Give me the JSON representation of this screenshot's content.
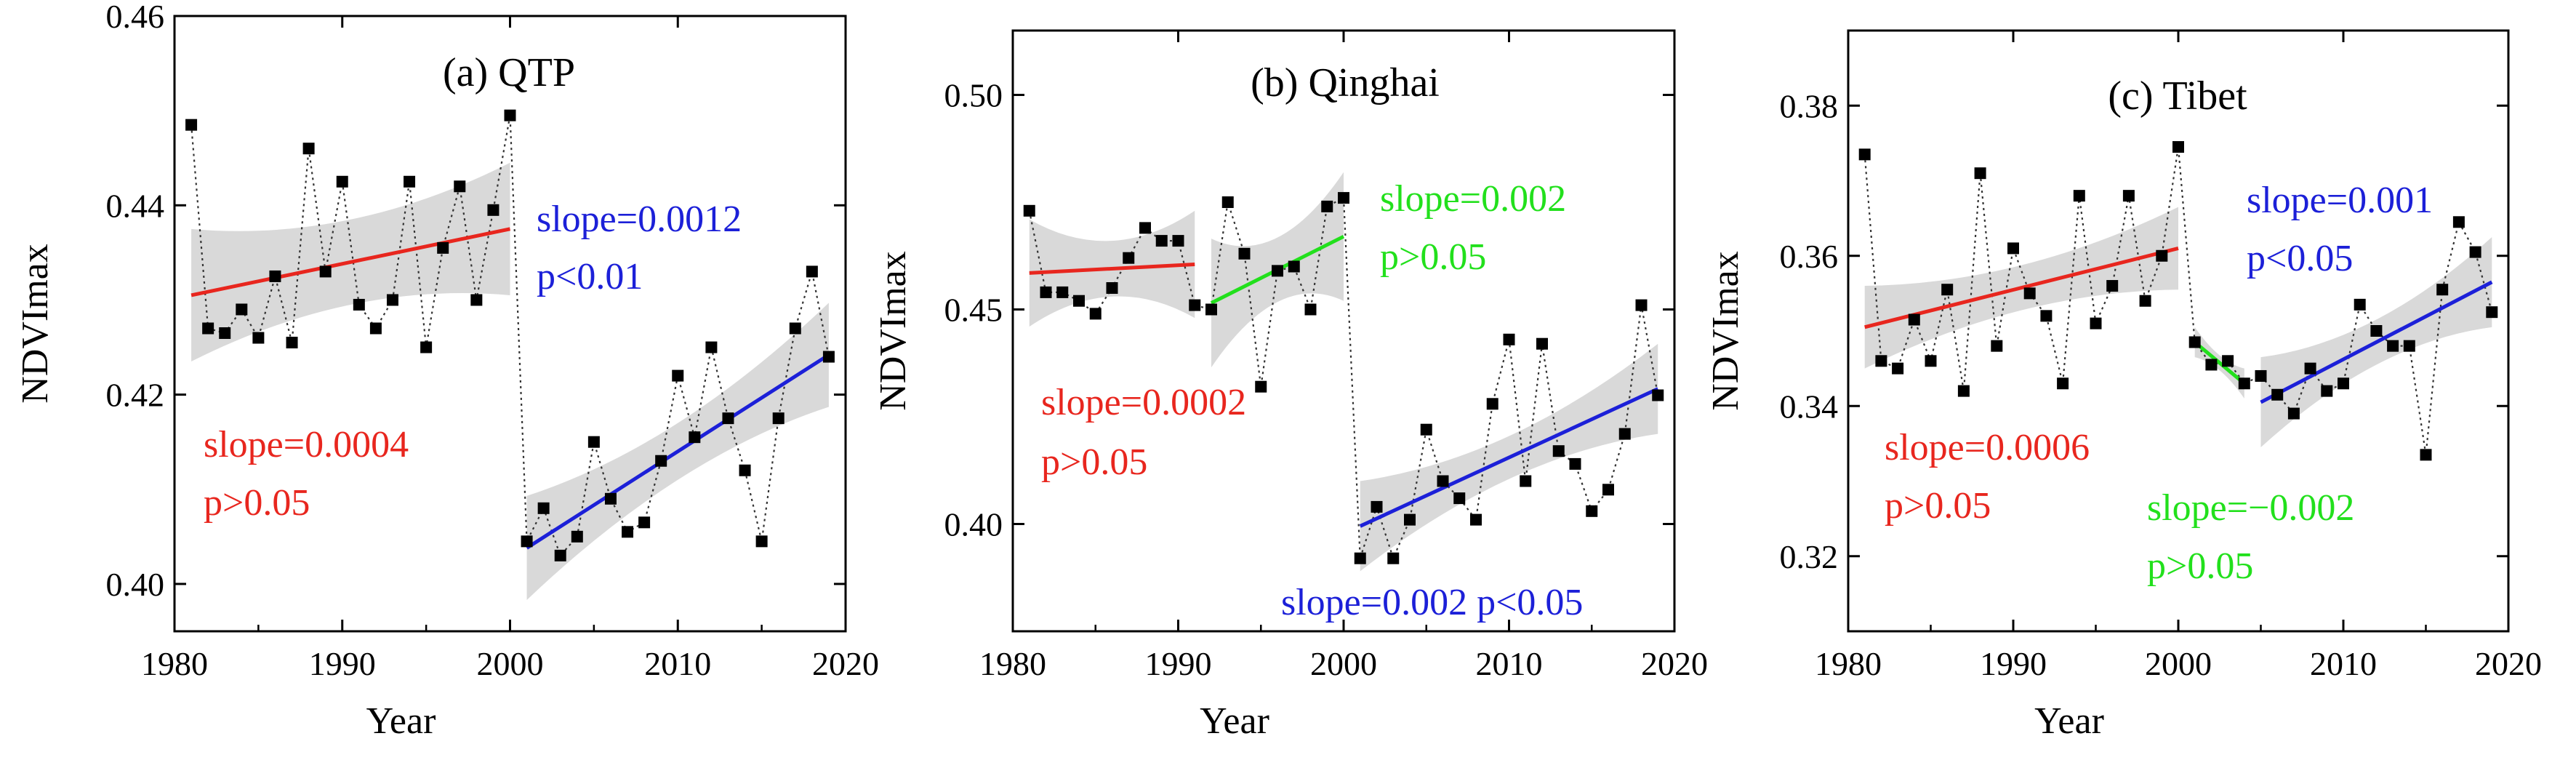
{
  "colors": {
    "red": "#e8261e",
    "blue": "#1c20d8",
    "green": "#22e01c",
    "band": "#d9d9d9",
    "point": "#000000"
  },
  "chart_data": [
    {
      "type": "scatter",
      "title": "(a) QTP",
      "xlabel": "Year",
      "ylabel": "NDVImax",
      "xlim": [
        1980,
        2020
      ],
      "ylim": [
        0.395,
        0.46
      ],
      "x_ticks": [
        1980,
        1990,
        2000,
        2010,
        2020
      ],
      "y_ticks": [
        0.4,
        0.42,
        0.44,
        0.46
      ],
      "y_tick_labels": [
        "0.40",
        "0.42",
        "0.44",
        "0.46"
      ],
      "years": [
        1981,
        1982,
        1983,
        1984,
        1985,
        1986,
        1987,
        1988,
        1989,
        1990,
        1991,
        1992,
        1993,
        1994,
        1995,
        1996,
        1997,
        1998,
        1999,
        2000,
        2001,
        2002,
        2003,
        2004,
        2005,
        2006,
        2007,
        2008,
        2009,
        2010,
        2011,
        2012,
        2013,
        2014,
        2015,
        2016,
        2017,
        2018,
        2019
      ],
      "values": [
        0.4485,
        0.427,
        0.4265,
        0.429,
        0.426,
        0.4325,
        0.4255,
        0.446,
        0.433,
        0.4425,
        0.4295,
        0.427,
        0.43,
        0.4425,
        0.425,
        0.4355,
        0.442,
        0.43,
        0.4395,
        0.4495,
        0.4045,
        0.408,
        0.403,
        0.405,
        0.415,
        0.409,
        0.4055,
        0.4065,
        0.413,
        0.422,
        0.4155,
        0.425,
        0.4175,
        0.412,
        0.4045,
        0.4175,
        0.427,
        0.433,
        0.424
      ],
      "trends": [
        {
          "name": "1981-2000",
          "x": [
            1981,
            2000
          ],
          "y": [
            0.4305,
            0.4375
          ],
          "band_half_width": [
            0.007,
            0.0045,
            0.007
          ],
          "color": "red",
          "slope_text": "slope=0.0004",
          "p_text": "p>0.05"
        },
        {
          "name": "2001-2019",
          "x": [
            2001,
            2019
          ],
          "y": [
            0.4038,
            0.4242
          ],
          "band_half_width": [
            0.0055,
            0.003,
            0.0055
          ],
          "color": "blue",
          "slope_text": "slope=0.0012",
          "p_text": "p<0.01"
        }
      ],
      "annotations": [
        {
          "text": "slope=0.0012",
          "color": "blue",
          "position": "upper-right"
        },
        {
          "text": "p<0.01",
          "color": "blue",
          "position": "upper-right"
        },
        {
          "text": "slope=0.0004",
          "color": "red",
          "position": "lower-left"
        },
        {
          "text": "p>0.05",
          "color": "red",
          "position": "lower-left"
        }
      ]
    },
    {
      "type": "scatter",
      "title": "(b) Qinghai",
      "xlabel": "Year",
      "ylabel": "NDVImax",
      "xlim": [
        1980,
        2020
      ],
      "ylim": [
        0.375,
        0.515
      ],
      "x_ticks": [
        1980,
        1990,
        2000,
        2010,
        2020
      ],
      "y_ticks": [
        0.4,
        0.45,
        0.5
      ],
      "y_tick_labels": [
        "0.40",
        "0.45",
        "0.50"
      ],
      "years": [
        1981,
        1982,
        1983,
        1984,
        1985,
        1986,
        1987,
        1988,
        1989,
        1990,
        1991,
        1992,
        1993,
        1994,
        1995,
        1996,
        1997,
        1998,
        1999,
        2000,
        2001,
        2002,
        2003,
        2004,
        2005,
        2006,
        2007,
        2008,
        2009,
        2010,
        2011,
        2012,
        2013,
        2014,
        2015,
        2016,
        2017,
        2018,
        2019
      ],
      "values": [
        0.473,
        0.454,
        0.454,
        0.452,
        0.449,
        0.455,
        0.462,
        0.469,
        0.466,
        0.466,
        0.451,
        0.45,
        0.475,
        0.463,
        0.432,
        0.459,
        0.46,
        0.45,
        0.474,
        0.476,
        0.392,
        0.404,
        0.392,
        0.401,
        0.422,
        0.41,
        0.406,
        0.401,
        0.428,
        0.443,
        0.41,
        0.442,
        0.417,
        0.414,
        0.403,
        0.408,
        0.421,
        0.451,
        0.43
      ],
      "trends": [
        {
          "name": "1981-1991",
          "x": [
            1981,
            1991
          ],
          "y": [
            0.4585,
            0.4605
          ],
          "band_half_width": [
            0.0125,
            0.0065,
            0.0125
          ],
          "color": "red",
          "slope_text": "slope=0.0002",
          "p_text": "p>0.05"
        },
        {
          "name": "1992-2000",
          "x": [
            1992,
            2000
          ],
          "y": [
            0.4515,
            0.467
          ],
          "band_half_width": [
            0.015,
            0.0075,
            0.015
          ],
          "color": "green",
          "slope_text": "slope=0.002",
          "p_text": "p>0.05"
        },
        {
          "name": "2001-2019",
          "x": [
            2001,
            2019
          ],
          "y": [
            0.3995,
            0.4315
          ],
          "band_half_width": [
            0.0105,
            0.005,
            0.0105
          ],
          "color": "blue",
          "slope_text": "slope=0.002",
          "p_text": "p<0.05"
        }
      ],
      "annotations": [
        {
          "text": "slope=0.002",
          "color": "green",
          "position": "upper-right"
        },
        {
          "text": "p>0.05",
          "color": "green",
          "position": "upper-right"
        },
        {
          "text": "slope=0.0002",
          "color": "red",
          "position": "middle-left"
        },
        {
          "text": "p>0.05",
          "color": "red",
          "position": "middle-left"
        },
        {
          "text": "slope=0.002 p<0.05",
          "color": "blue",
          "position": "bottom-right"
        }
      ]
    },
    {
      "type": "scatter",
      "title": "(c) Tibet",
      "xlabel": "Year",
      "ylabel": "NDVImax",
      "xlim": [
        1980,
        2020
      ],
      "ylim": [
        0.31,
        0.39
      ],
      "x_ticks": [
        1980,
        1990,
        2000,
        2010,
        2020
      ],
      "y_ticks": [
        0.32,
        0.34,
        0.36,
        0.38
      ],
      "y_tick_labels": [
        "0.32",
        "0.34",
        "0.36",
        "0.38"
      ],
      "years": [
        1981,
        1982,
        1983,
        1984,
        1985,
        1986,
        1987,
        1988,
        1989,
        1990,
        1991,
        1992,
        1993,
        1994,
        1995,
        1996,
        1997,
        1998,
        1999,
        2000,
        2001,
        2002,
        2003,
        2004,
        2005,
        2006,
        2007,
        2008,
        2009,
        2010,
        2011,
        2012,
        2013,
        2014,
        2015,
        2016,
        2017,
        2018,
        2019
      ],
      "values": [
        0.3735,
        0.346,
        0.345,
        0.3515,
        0.346,
        0.3555,
        0.342,
        0.371,
        0.348,
        0.361,
        0.355,
        0.352,
        0.343,
        0.368,
        0.351,
        0.356,
        0.368,
        0.354,
        0.36,
        0.3745,
        0.3485,
        0.3455,
        0.346,
        0.343,
        0.344,
        0.3415,
        0.339,
        0.345,
        0.342,
        0.343,
        0.3535,
        0.35,
        0.348,
        0.348,
        0.3335,
        0.3555,
        0.3645,
        0.3605,
        0.3525
      ],
      "trends": [
        {
          "name": "1981-2000",
          "x": [
            1981,
            2000
          ],
          "y": [
            0.3505,
            0.361
          ],
          "band_half_width": [
            0.0055,
            0.003,
            0.0055
          ],
          "color": "red",
          "slope_text": "slope=0.0006",
          "p_text": "p>0.05"
        },
        {
          "name": "2001-2004",
          "x": [
            2001,
            2004
          ],
          "y": [
            0.3485,
            0.343
          ],
          "band_half_width": [
            0.002,
            0.001,
            0.002
          ],
          "color": "green",
          "slope_text": "slope=−0.002",
          "p_text": "p>0.05"
        },
        {
          "name": "2005-2019",
          "x": [
            2005,
            2019
          ],
          "y": [
            0.3405,
            0.3565
          ],
          "band_half_width": [
            0.006,
            0.003,
            0.006
          ],
          "color": "blue",
          "slope_text": "slope=0.001",
          "p_text": "p<0.05"
        }
      ],
      "annotations": [
        {
          "text": "slope=0.001",
          "color": "blue",
          "position": "upper-right"
        },
        {
          "text": "p<0.05",
          "color": "blue",
          "position": "upper-right"
        },
        {
          "text": "slope=0.0006",
          "color": "red",
          "position": "lower-left"
        },
        {
          "text": "p>0.05",
          "color": "red",
          "position": "lower-left"
        },
        {
          "text": "slope=−0.002",
          "color": "green",
          "position": "bottom-middle"
        },
        {
          "text": "p>0.05",
          "color": "green",
          "position": "bottom-middle"
        }
      ]
    }
  ]
}
